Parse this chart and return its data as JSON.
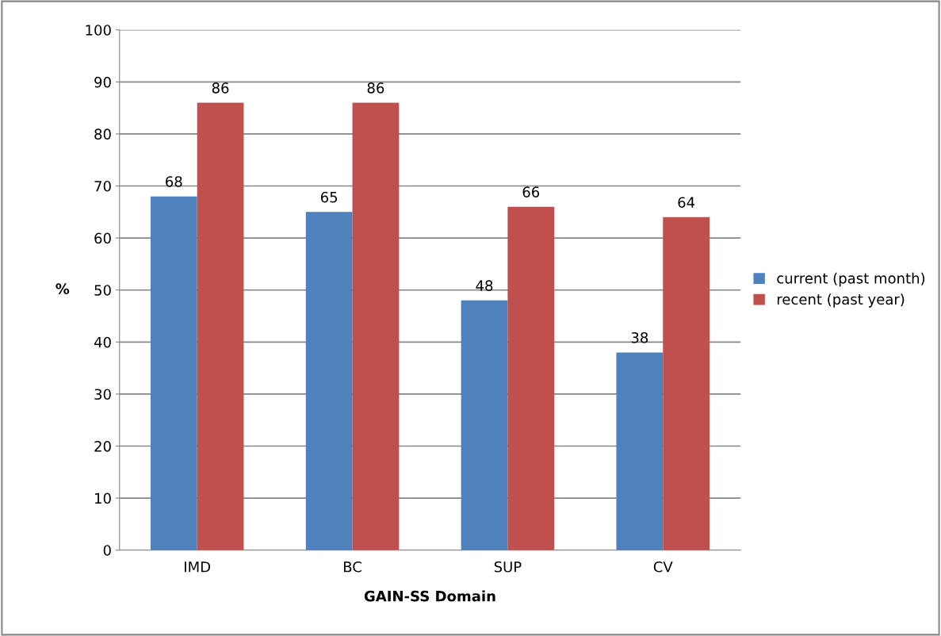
{
  "chart_data": {
    "type": "bar",
    "xlabel": "GAIN-SS Domain",
    "ylabel": "%",
    "categories": [
      "IMD",
      "BC",
      "SUP",
      "CV"
    ],
    "series": [
      {
        "name": "current (past month)",
        "color": "#4f81bd",
        "values": [
          68,
          65,
          48,
          38
        ]
      },
      {
        "name": "recent (past year)",
        "color": "#c0504d",
        "values": [
          86,
          86,
          66,
          64
        ]
      }
    ],
    "ylim": [
      0,
      100
    ],
    "yticks": [
      0,
      10,
      20,
      30,
      40,
      50,
      60,
      70,
      80,
      90,
      100
    ],
    "grid": "y",
    "legend": "right",
    "data_labels": true
  }
}
